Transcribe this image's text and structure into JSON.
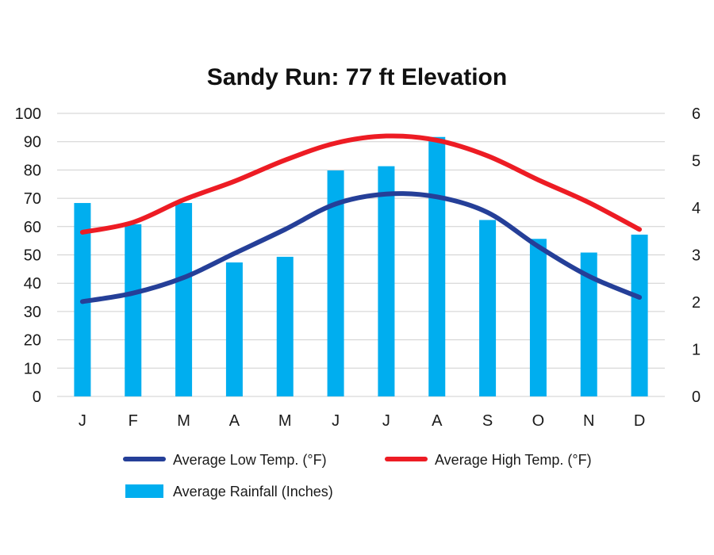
{
  "chart_data": {
    "type": "bar+line",
    "title": "Sandy Run: 77 ft Elevation",
    "categories": [
      "J",
      "F",
      "M",
      "A",
      "M",
      "J",
      "J",
      "A",
      "S",
      "O",
      "N",
      "D"
    ],
    "y_left": {
      "ylim": [
        0,
        100
      ],
      "ticks": [
        "0",
        "10",
        "20",
        "30",
        "40",
        "50",
        "60",
        "70",
        "80",
        "90",
        "100"
      ]
    },
    "y_right": {
      "ylim": [
        0,
        6
      ],
      "ticks": [
        "0",
        "1",
        "2",
        "3",
        "4",
        "5",
        "6"
      ]
    },
    "grid": true,
    "legend_position": "bottom",
    "series": [
      {
        "name": "Average Low Temp. (°F)",
        "kind": "line",
        "axis": "left",
        "color": "#253f98",
        "values": [
          33.5,
          36.5,
          42,
          50.5,
          59,
          68,
          71.5,
          70.5,
          65,
          53,
          42.5,
          35
        ]
      },
      {
        "name": "Average High Temp. (°F)",
        "kind": "line",
        "axis": "left",
        "color": "#ed1c24",
        "values": [
          58,
          61.5,
          69.5,
          76,
          83.5,
          89.5,
          92,
          90.5,
          85,
          76.5,
          68.5,
          59
        ]
      },
      {
        "name": "Average Rainfall (Inches)",
        "kind": "bar",
        "axis": "right",
        "color": "#00aeef",
        "values": [
          4.1,
          3.65,
          4.1,
          2.84,
          2.96,
          4.79,
          4.88,
          5.5,
          3.74,
          3.34,
          3.05,
          3.43
        ]
      }
    ]
  }
}
